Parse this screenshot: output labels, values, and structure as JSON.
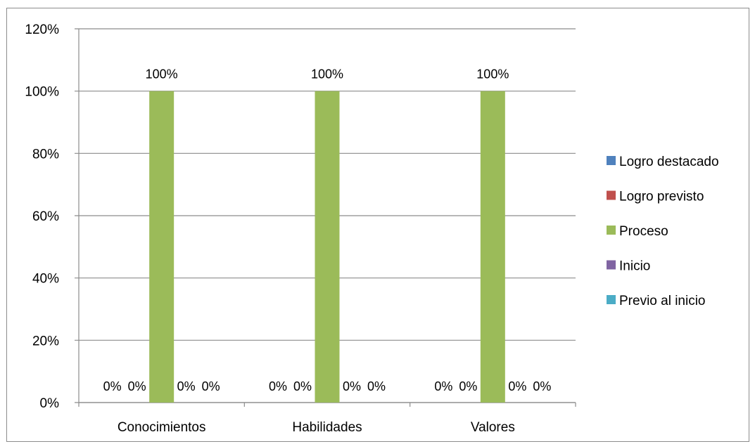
{
  "chart_data": {
    "type": "bar",
    "categories": [
      "Conocimientos",
      "Habilidades",
      "Valores"
    ],
    "series": [
      {
        "name": "Logro destacado",
        "values": [
          0,
          0,
          0
        ],
        "color": "#4f81bd"
      },
      {
        "name": "Logro previsto",
        "values": [
          0,
          0,
          0
        ],
        "color": "#c0504d"
      },
      {
        "name": "Proceso",
        "values": [
          100,
          100,
          100
        ],
        "color": "#9bbb59"
      },
      {
        "name": "Inicio",
        "values": [
          0,
          0,
          0
        ],
        "color": "#8064a2"
      },
      {
        "name": "Previo al inicio",
        "values": [
          0,
          0,
          0
        ],
        "color": "#4bacc6"
      }
    ],
    "ylim": [
      0,
      120
    ],
    "yticks": [
      0,
      20,
      40,
      60,
      80,
      100,
      120
    ],
    "ytick_labels": [
      "0%",
      "20%",
      "40%",
      "60%",
      "80%",
      "100%",
      "120%"
    ],
    "data_labels": [
      [
        "0%",
        "0%",
        "100%",
        "0%",
        "0%"
      ],
      [
        "0%",
        "0%",
        "100%",
        "0%",
        "0%"
      ],
      [
        "0%",
        "0%",
        "100%",
        "0%",
        "0%"
      ]
    ],
    "grid": true,
    "legend_position": "right",
    "title": "",
    "xlabel": "",
    "ylabel": ""
  }
}
